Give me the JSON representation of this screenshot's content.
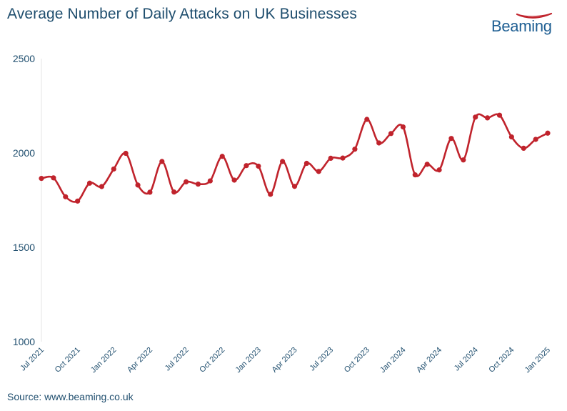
{
  "chart_data": {
    "type": "line",
    "title": "Average Number of Daily Attacks on UK Businesses",
    "source": "Source: www.beaming.co.uk",
    "logo_text": "Beaming",
    "ylim": [
      1000,
      2500
    ],
    "yticks": [
      1000,
      1500,
      2000,
      2500
    ],
    "grid": false,
    "x": [
      "Jul 2021",
      "Aug 2021",
      "Sep 2021",
      "Oct 2021",
      "Nov 2021",
      "Dec 2021",
      "Jan 2022",
      "Feb 2022",
      "Mar 2022",
      "Apr 2022",
      "May 2022",
      "Jun 2022",
      "Jul 2022",
      "Aug 2022",
      "Sep 2022",
      "Oct 2022",
      "Nov 2022",
      "Dec 2022",
      "Jan 2023",
      "Feb 2023",
      "Mar 2023",
      "Apr 2023",
      "May 2023",
      "Jun 2023",
      "Jul 2023",
      "Aug 2023",
      "Sep 2023",
      "Oct 2023",
      "Nov 2023",
      "Dec 2023",
      "Jan 2024",
      "Feb 2024",
      "Mar 2024",
      "Apr 2024",
      "May 2024",
      "Jun 2024",
      "Jul 2024",
      "Aug 2024",
      "Sep 2024",
      "Oct 2024",
      "Nov 2024",
      "Dec 2024",
      "Jan 2025"
    ],
    "xtick_labels": [
      "Jul 2021",
      "Oct 2021",
      "Jan 2022",
      "Apr 2022",
      "Jul 2022",
      "Oct 2022",
      "Jan 2023",
      "Apr 2023",
      "Jul 2023",
      "Oct 2023",
      "Jan 2024",
      "Apr 2024",
      "Jul 2024",
      "Oct 2024",
      "Jan 2025"
    ],
    "series": [
      {
        "color": "#c0232c",
        "values": [
          1865,
          1868,
          1768,
          1745,
          1840,
          1822,
          1915,
          1998,
          1830,
          1792,
          1955,
          1793,
          1847,
          1835,
          1852,
          1982,
          1856,
          1933,
          1930,
          1781,
          1955,
          1823,
          1945,
          1902,
          1972,
          1973,
          2020,
          2178,
          2053,
          2103,
          2138,
          1884,
          1940,
          1910,
          2077,
          1963,
          2190,
          2186,
          2200,
          2085,
          2025,
          2072,
          2105
        ]
      }
    ]
  }
}
